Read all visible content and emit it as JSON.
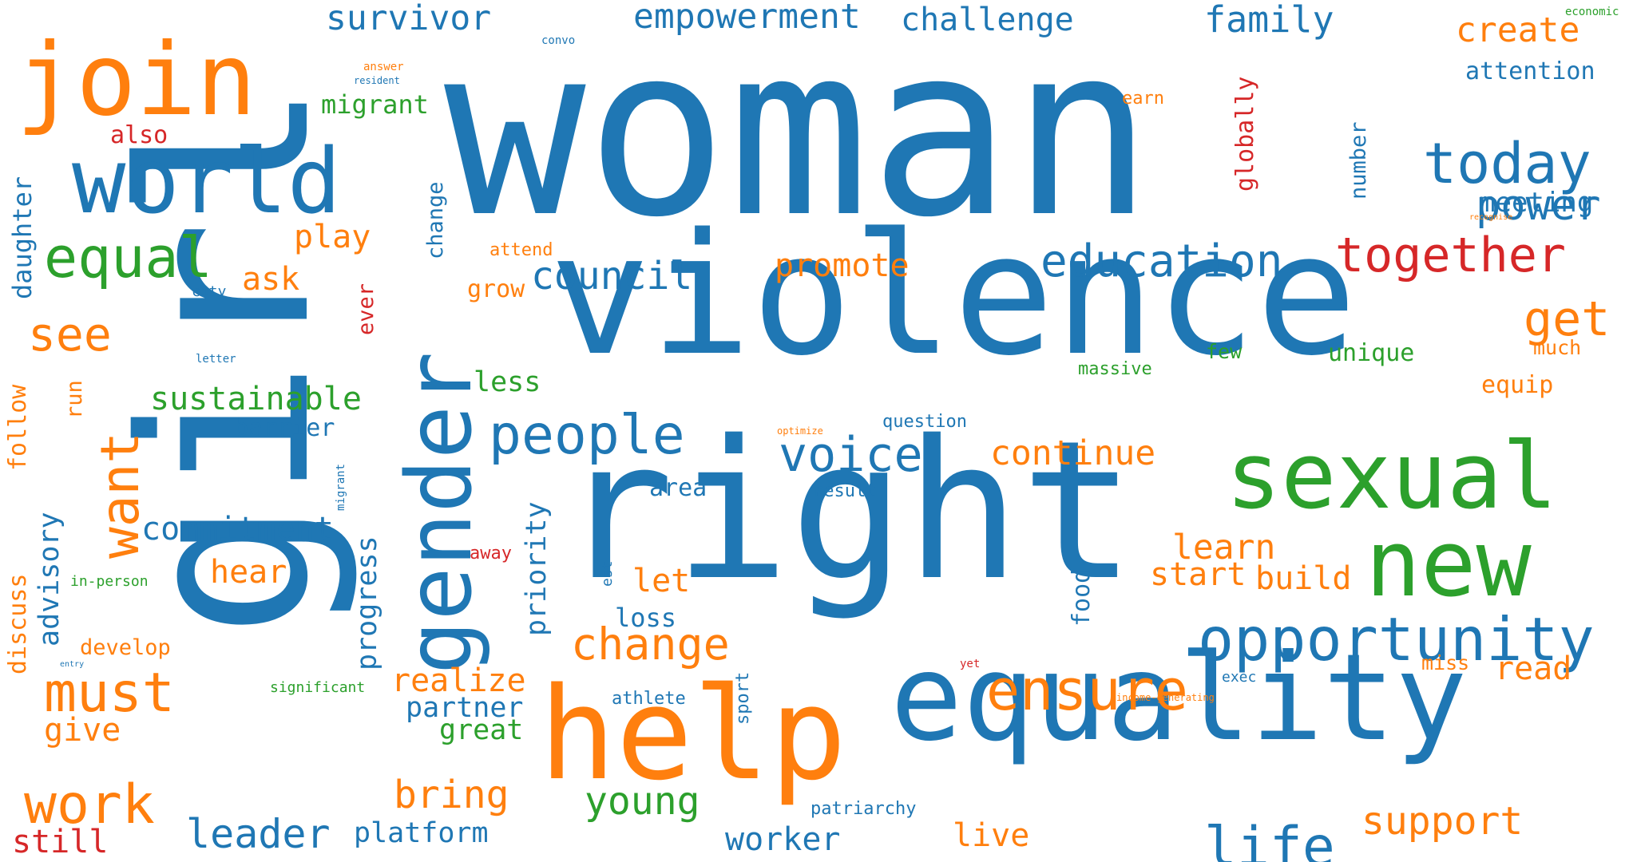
{
  "palette": {
    "blue": "#1f77b4",
    "orange": "#ff7f0e",
    "green": "#2ca02c",
    "red": "#d62728"
  },
  "words": [
    "woman",
    "girl",
    "violence",
    "right",
    "equality",
    "help",
    "gender",
    "world",
    "join",
    "sexual",
    "new",
    "opportunity",
    "today",
    "together",
    "education",
    "ensure",
    "power",
    "life",
    "equal",
    "people",
    "voice",
    "want",
    "must",
    "work",
    "get",
    "change",
    "see",
    "council",
    "sustainable",
    "survivor",
    "empowerment",
    "challenge",
    "family",
    "create",
    "attention",
    "meeting",
    "young",
    "leader",
    "continue",
    "learn",
    "commitment",
    "bring",
    "support",
    "start",
    "build",
    "platform",
    "worker",
    "live",
    "promote",
    "realize",
    "partner",
    "great",
    "give",
    "still",
    "hear",
    "let",
    "play",
    "ask",
    "advisory",
    "progress",
    "priority",
    "read",
    "daughter",
    "migrant",
    "also",
    "barrier",
    "unique",
    "grow",
    "less",
    "equip",
    "loss",
    "area",
    "much",
    "few",
    "massive",
    "food",
    "number",
    "globally",
    "follow",
    "discuss",
    "run",
    "develop",
    "miss",
    "attend",
    "earn",
    "question",
    "result",
    "ever",
    "away",
    "sport",
    "athlete",
    "exec",
    "patriarchy",
    "city",
    "letter",
    "significant",
    "in-person",
    "est",
    "change",
    "migrant",
    "answer",
    "resident",
    "convo",
    "economic",
    "recognise",
    "optimize",
    "entry",
    "yet",
    "income-generating"
  ]
}
